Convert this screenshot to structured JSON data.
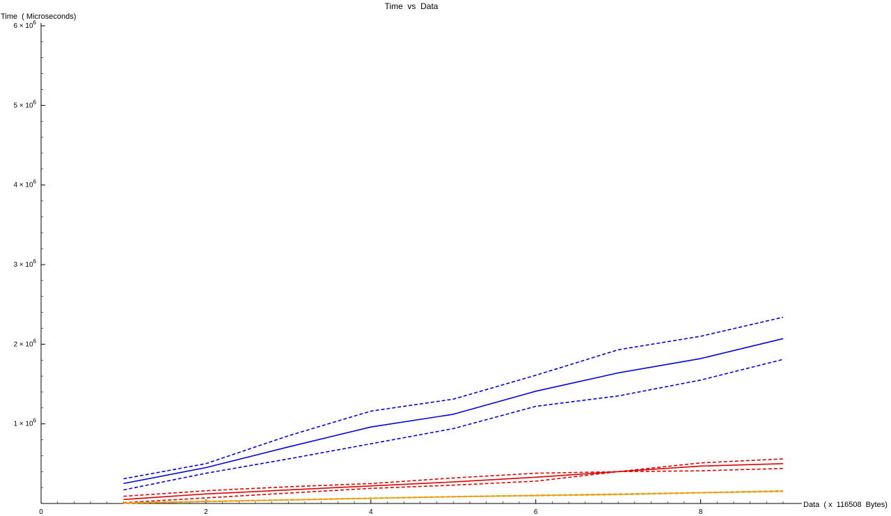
{
  "chart_data": {
    "type": "line",
    "title": "Time  vs  Data",
    "xlabel": "Data  ( x  116508  Bytes)",
    "ylabel": "Time  ( Microseconds)",
    "xlim": [
      0,
      9.2
    ],
    "ylim": [
      0,
      6000000
    ],
    "x_ticks": [
      {
        "value": 0,
        "label": "0"
      },
      {
        "value": 2,
        "label": "2"
      },
      {
        "value": 4,
        "label": "4"
      },
      {
        "value": 6,
        "label": "6"
      },
      {
        "value": 8,
        "label": "8"
      }
    ],
    "y_ticks": [
      {
        "value": 1000000,
        "mantissa": "1",
        "base": "× 10",
        "exp": "6"
      },
      {
        "value": 2000000,
        "mantissa": "2",
        "base": "× 10",
        "exp": "6"
      },
      {
        "value": 3000000,
        "mantissa": "3",
        "base": "× 10",
        "exp": "6"
      },
      {
        "value": 4000000,
        "mantissa": "4",
        "base": "× 10",
        "exp": "6"
      },
      {
        "value": 5000000,
        "mantissa": "5",
        "base": "× 10",
        "exp": "6"
      },
      {
        "value": 6000000,
        "mantissa": "6",
        "base": "× 10",
        "exp": "6"
      }
    ],
    "grid": false,
    "x": [
      1,
      2,
      3,
      4,
      5,
      6,
      7,
      8,
      9
    ],
    "series": [
      {
        "color": "#0000dd",
        "dash": "solid",
        "values": [
          250000,
          450000,
          710000,
          960000,
          1120000,
          1410000,
          1640000,
          1820000,
          2070000
        ]
      },
      {
        "color": "#0000dd",
        "dash": "dashed",
        "values": [
          310000,
          500000,
          850000,
          1160000,
          1310000,
          1610000,
          1930000,
          2100000,
          2340000
        ]
      },
      {
        "color": "#0000dd",
        "dash": "dashed",
        "values": [
          170000,
          380000,
          560000,
          750000,
          940000,
          1220000,
          1350000,
          1550000,
          1810000
        ]
      },
      {
        "color": "#dd0000",
        "dash": "solid",
        "values": [
          50000,
          120000,
          170000,
          220000,
          270000,
          330000,
          400000,
          470000,
          500000
        ]
      },
      {
        "color": "#dd0000",
        "dash": "dashed",
        "values": [
          90000,
          160000,
          210000,
          250000,
          320000,
          380000,
          400000,
          510000,
          560000
        ]
      },
      {
        "color": "#dd0000",
        "dash": "dashed",
        "values": [
          10000,
          70000,
          130000,
          190000,
          230000,
          280000,
          400000,
          410000,
          440000
        ]
      },
      {
        "color": "#e8a010",
        "dash": "solid",
        "values": [
          5000,
          25000,
          45000,
          65000,
          85000,
          100000,
          115000,
          135000,
          155000
        ]
      },
      {
        "color": "#e8a010",
        "dash": "dashed",
        "values": [
          8000,
          28000,
          48000,
          68000,
          88000,
          104000,
          120000,
          138000,
          160000
        ]
      },
      {
        "color": "#e8a010",
        "dash": "dashed",
        "values": [
          2000,
          22000,
          42000,
          62000,
          82000,
          96000,
          110000,
          132000,
          150000
        ]
      }
    ]
  }
}
